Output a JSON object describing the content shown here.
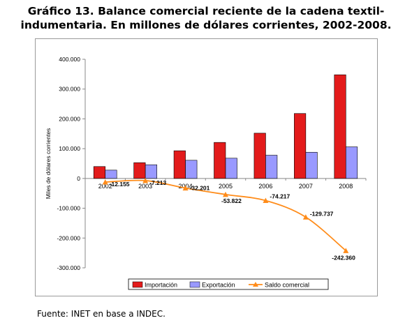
{
  "title_line1": "Gráfico 13. Balance comercial reciente de la cadena textil-",
  "title_line2": "indumentaria. En millones de dólares corrientes, 2002-2008.",
  "source": "Fuente: INET en base a INDEC.",
  "colors": {
    "importacion": "#e31b1b",
    "exportacion": "#9999ff",
    "saldo": "#ff8c1a"
  },
  "chart_data": {
    "type": "bar",
    "categories": [
      "2002",
      "2003",
      "2004",
      "2005",
      "2006",
      "2007",
      "2008"
    ],
    "ylabel": "Miles de dólares corrientes",
    "ylim": [
      -300000,
      400000
    ],
    "yticks": [
      400000,
      300000,
      200000,
      100000,
      0,
      -100000,
      -200000,
      -300000
    ],
    "ytick_labels": [
      "400.000",
      "300.000",
      "200.000",
      "100.000",
      "0",
      "-100.000",
      "-200.000",
      "-300.000"
    ],
    "grid": false,
    "legend_position": "bottom",
    "series": [
      {
        "name": "Importación",
        "type": "bar",
        "values": [
          40000,
          53000,
          93000,
          121000,
          152000,
          218000,
          348000
        ]
      },
      {
        "name": "Exportación",
        "type": "bar",
        "values": [
          28000,
          46000,
          61000,
          68000,
          78000,
          88000,
          106000
        ]
      },
      {
        "name": "Saldo comercial",
        "type": "line",
        "values": [
          -12155,
          -7213,
          -32201,
          -53822,
          -74217,
          -129737,
          -242360
        ],
        "data_labels": [
          "-12.155",
          "-7.213",
          "-32.201",
          "-53.822",
          "-74.217",
          "-129.737",
          "-242.360"
        ]
      }
    ]
  }
}
